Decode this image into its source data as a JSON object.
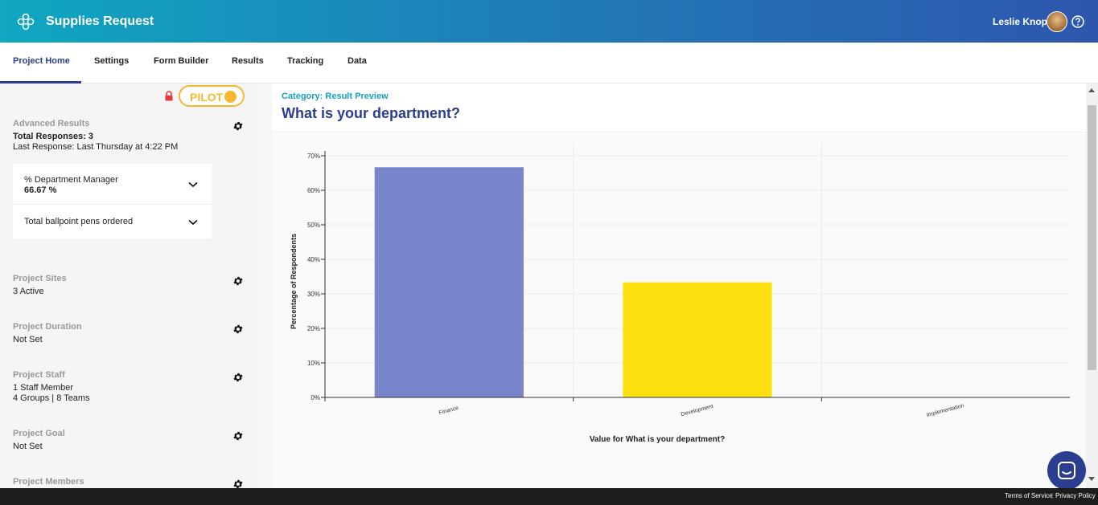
{
  "header": {
    "app_title": "Supplies Request",
    "user_name": "Leslie Knope",
    "logo_icon": "flower-logo-icon",
    "help_icon": "help-circle-icon"
  },
  "tabs": [
    {
      "label": "Project Home",
      "active": true
    },
    {
      "label": "Settings"
    },
    {
      "label": "Form Builder"
    },
    {
      "label": "Results"
    },
    {
      "label": "Tracking"
    },
    {
      "label": "Data"
    }
  ],
  "sidebar": {
    "pilot_label": "PILOT",
    "advanced_results": {
      "title": "Advanced Results",
      "total_responses": "Total Responses: 3",
      "last_response": "Last Response: Last Thursday at 4:22 PM",
      "metrics": [
        {
          "name": "% Department Manager",
          "value": "66.67 %"
        },
        {
          "name": "Total ballpoint pens ordered",
          "value": ""
        }
      ]
    },
    "sections": [
      {
        "title": "Project Sites",
        "lines": [
          "3 Active"
        ]
      },
      {
        "title": "Project Duration",
        "lines": [
          "Not Set"
        ]
      },
      {
        "title": "Project Staff",
        "lines": [
          "1 Staff Member",
          "4 Groups | 8 Teams"
        ]
      },
      {
        "title": "Project Goal",
        "lines": [
          "Not Set"
        ]
      },
      {
        "title": "Project Members",
        "lines": []
      }
    ]
  },
  "main": {
    "category": "Category: Result Preview",
    "question": "What is your department?"
  },
  "chart_data": {
    "type": "bar",
    "categories": [
      "Finance",
      "Development",
      "Implementation"
    ],
    "values": [
      66.67,
      33.33,
      0
    ],
    "colors": [
      "#7985cb",
      "#fde010",
      "#9e9e9e"
    ],
    "xlabel": "Value for What is your department?",
    "ylabel": "Percentage of Respondents",
    "ylim": [
      0,
      70
    ],
    "yticks": [
      "0%",
      "10%",
      "20%",
      "30%",
      "40%",
      "50%",
      "60%",
      "70%"
    ],
    "grid": true
  },
  "footer": {
    "terms": "Terms of Service",
    "privacy": "Privacy Policy"
  }
}
